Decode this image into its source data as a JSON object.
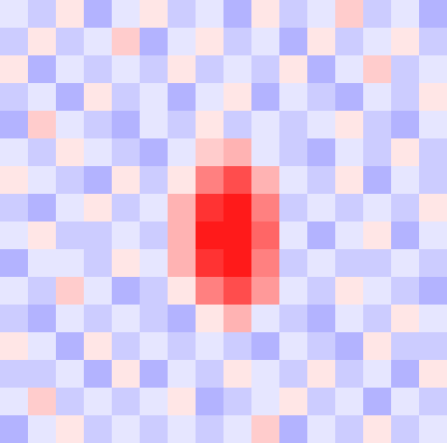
{
  "chart_data": {
    "type": "heatmap",
    "colormap": "bwr",
    "low_color": "#0000ff",
    "mid_color": "#ffffff",
    "high_color": "#ff0000",
    "vlim": [
      -1,
      1
    ],
    "values": [
      [
        -0.1,
        -0.2,
        0.1,
        -0.3,
        -0.1,
        0.1,
        -0.2,
        -0.1,
        -0.3,
        0.1,
        -0.2,
        -0.1,
        0.2,
        -0.2,
        -0.1,
        -0.3
      ],
      [
        -0.2,
        0.1,
        -0.2,
        -0.1,
        0.2,
        -0.3,
        -0.1,
        0.1,
        -0.2,
        -0.1,
        -0.3,
        0.1,
        -0.2,
        -0.1,
        0.1,
        -0.2
      ],
      [
        0.1,
        -0.3,
        -0.1,
        -0.2,
        -0.1,
        -0.2,
        0.1,
        -0.2,
        -0.1,
        -0.2,
        0.1,
        -0.3,
        -0.1,
        0.2,
        -0.2,
        -0.1
      ],
      [
        -0.2,
        -0.1,
        -0.3,
        0.1,
        -0.2,
        -0.1,
        -0.3,
        -0.1,
        0.1,
        -0.3,
        -0.1,
        -0.2,
        -0.3,
        -0.1,
        -0.2,
        0.1
      ],
      [
        -0.3,
        0.2,
        -0.1,
        -0.2,
        -0.3,
        -0.1,
        -0.2,
        0.1,
        -0.2,
        -0.1,
        -0.2,
        -0.1,
        0.1,
        -0.2,
        -0.3,
        -0.1
      ],
      [
        -0.1,
        -0.2,
        0.1,
        -0.1,
        -0.2,
        -0.3,
        -0.1,
        0.2,
        0.3,
        -0.1,
        -0.2,
        -0.3,
        -0.1,
        -0.2,
        0.1,
        -0.2
      ],
      [
        0.1,
        -0.1,
        -0.2,
        -0.3,
        0.1,
        -0.2,
        0.1,
        0.5,
        0.7,
        0.3,
        -0.1,
        -0.2,
        0.1,
        -0.3,
        -0.1,
        -0.2
      ],
      [
        -0.2,
        -0.3,
        -0.1,
        0.1,
        -0.2,
        -0.1,
        0.3,
        0.8,
        0.9,
        0.5,
        -0.2,
        -0.1,
        -0.2,
        -0.1,
        -0.2,
        0.1
      ],
      [
        -0.1,
        0.1,
        -0.2,
        -0.2,
        -0.1,
        -0.2,
        0.3,
        0.9,
        0.9,
        0.6,
        -0.1,
        -0.3,
        -0.1,
        0.1,
        -0.3,
        -0.1
      ],
      [
        -0.3,
        -0.1,
        -0.1,
        -0.2,
        0.1,
        -0.1,
        0.3,
        0.8,
        0.9,
        0.5,
        -0.2,
        -0.1,
        -0.2,
        -0.2,
        -0.1,
        -0.2
      ],
      [
        -0.1,
        -0.2,
        0.2,
        -0.1,
        -0.3,
        -0.2,
        0.1,
        0.5,
        0.7,
        0.4,
        -0.1,
        -0.2,
        0.1,
        -0.1,
        -0.2,
        -0.3
      ],
      [
        -0.2,
        -0.3,
        -0.1,
        -0.2,
        -0.1,
        -0.2,
        -0.3,
        0.1,
        0.3,
        -0.1,
        -0.2,
        -0.3,
        -0.1,
        -0.2,
        0.1,
        -0.1
      ],
      [
        0.1,
        -0.1,
        -0.3,
        0.1,
        -0.2,
        -0.1,
        -0.2,
        -0.1,
        -0.2,
        -0.3,
        -0.1,
        -0.2,
        -0.3,
        0.1,
        -0.2,
        -0.2
      ],
      [
        -0.2,
        -0.2,
        -0.1,
        -0.3,
        0.1,
        -0.3,
        -0.1,
        -0.2,
        0.1,
        -0.1,
        -0.2,
        0.1,
        -0.2,
        -0.1,
        -0.3,
        0.1
      ],
      [
        -0.1,
        0.2,
        -0.2,
        -0.1,
        -0.2,
        -0.1,
        0.1,
        -0.3,
        -0.2,
        -0.1,
        0.1,
        -0.2,
        -0.1,
        -0.3,
        -0.1,
        -0.2
      ],
      [
        -0.3,
        -0.1,
        0.1,
        -0.2,
        -0.1,
        -0.2,
        -0.1,
        -0.2,
        -0.1,
        0.2,
        -0.3,
        -0.1,
        -0.2,
        0.1,
        -0.2,
        -0.1
      ]
    ]
  }
}
